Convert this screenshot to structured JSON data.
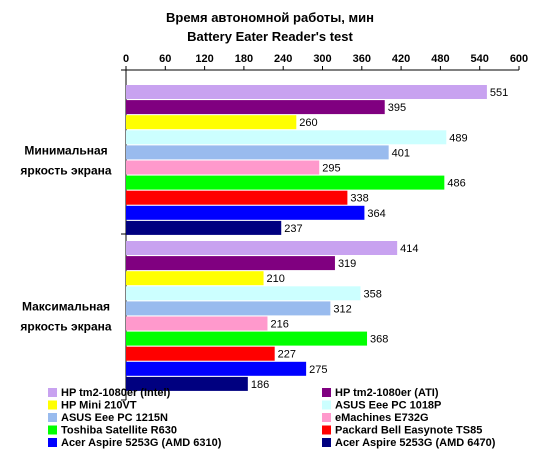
{
  "chart_data": {
    "type": "bar",
    "orientation": "horizontal",
    "title": "Время автономной работы, мин",
    "subtitle": "Battery Eater Reader's test",
    "xlim": [
      0,
      600
    ],
    "xticks": [
      "0",
      "60",
      "120",
      "180",
      "240",
      "300",
      "360",
      "420",
      "480",
      "540",
      "600"
    ],
    "categories": [
      "Минимальная яркость экрана",
      "Максимальная яркость экрана"
    ],
    "category_lines": [
      [
        "Минимальная",
        "яркость экрана"
      ],
      [
        "Максимальная",
        "яркость экрана"
      ]
    ],
    "series": [
      {
        "name": "HP tm2-1080er (Intel)",
        "color": "#c8a2f0",
        "values": [
          551,
          414
        ]
      },
      {
        "name": "HP tm2-1080er (ATI)",
        "color": "#800080",
        "values": [
          395,
          319
        ]
      },
      {
        "name": "HP Mini 210VT",
        "color": "#ffff00",
        "values": [
          260,
          210
        ]
      },
      {
        "name": "ASUS Eee PC 1018P",
        "color": "#ccffff",
        "values": [
          489,
          358
        ]
      },
      {
        "name": "ASUS Eee PC 1215N",
        "color": "#99bbee",
        "values": [
          401,
          312
        ]
      },
      {
        "name": "eMachines E732G",
        "color": "#ff99cc",
        "values": [
          295,
          216
        ]
      },
      {
        "name": "Toshiba Satellite R630",
        "color": "#00ff00",
        "values": [
          486,
          368
        ]
      },
      {
        "name": "Packard Bell Easynote TS85",
        "color": "#ff0000",
        "values": [
          338,
          227
        ]
      },
      {
        "name": "Acer Aspire 5253G (AMD 6310)",
        "color": "#0000ff",
        "values": [
          364,
          275
        ]
      },
      {
        "name": "Acer Aspire 5253G (AMD 6470)",
        "color": "#000080",
        "values": [
          237,
          186
        ]
      }
    ],
    "legend_position": "bottom",
    "grid": false
  }
}
